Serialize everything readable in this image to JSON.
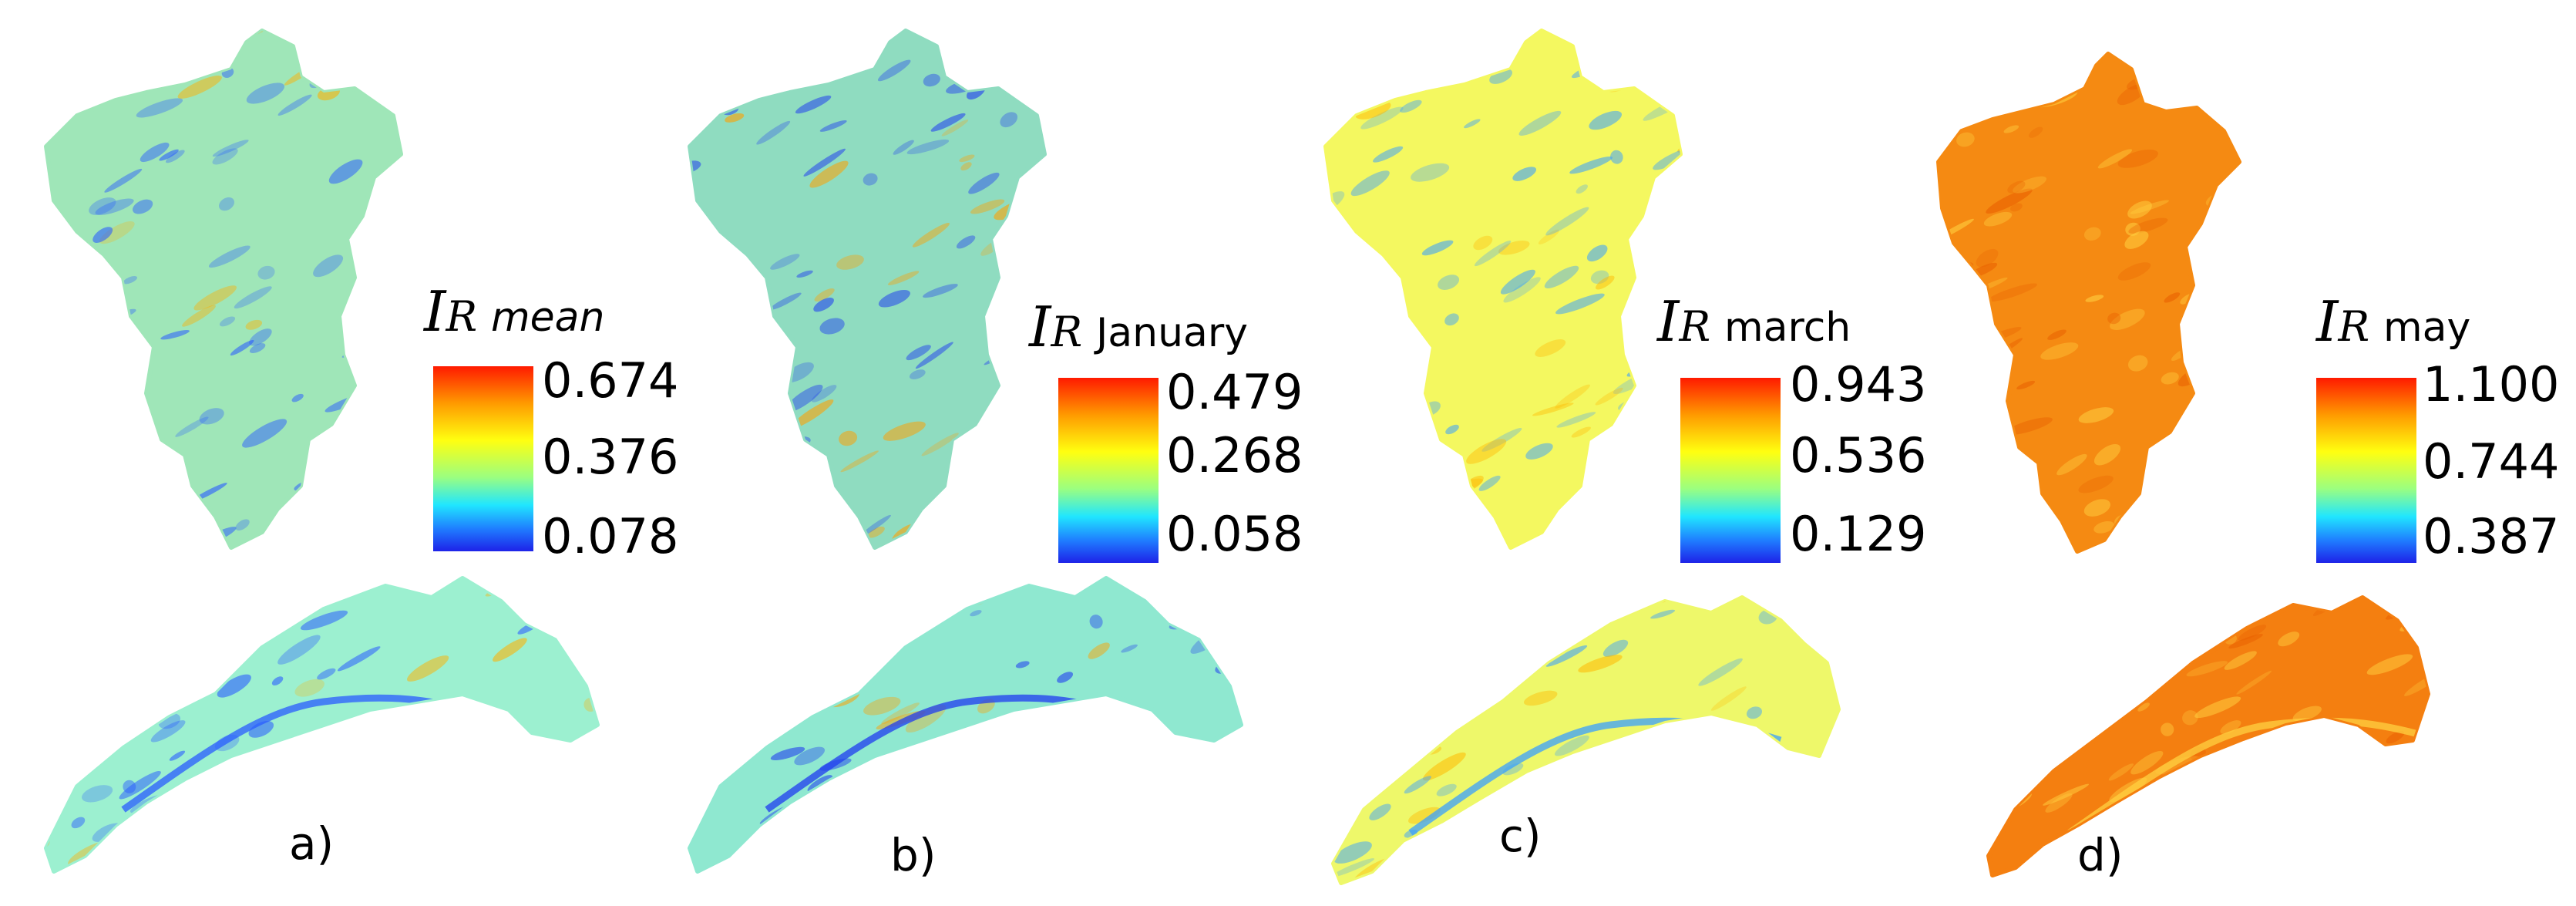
{
  "figure": {
    "panels": [
      {
        "id": "a",
        "label": "a)",
        "legend": {
          "symbol": "I",
          "subscript": "R",
          "month": "mean",
          "month_italic": true,
          "max": "0.674",
          "mid": "0.376",
          "min": "0.078"
        },
        "fill_top": "#9fe6b8",
        "fill_bottom": "#9cf0d0",
        "accent": "#2a5cff",
        "hot": "#ffb000"
      },
      {
        "id": "b",
        "label": "b)",
        "legend": {
          "symbol": "I",
          "subscript": "R",
          "month": "January",
          "month_italic": false,
          "max": "0.479",
          "mid": "0.268",
          "min": "0.058"
        },
        "fill_top": "#8fdcc0",
        "fill_bottom": "#8fe8d0",
        "accent": "#1f3cf0",
        "hot": "#ffa000"
      },
      {
        "id": "c",
        "label": "c)",
        "legend": {
          "symbol": "I",
          "subscript": "R",
          "month": "march",
          "month_italic": false,
          "max": "0.943",
          "mid": "0.536",
          "min": "0.129"
        },
        "fill_top": "#f4f860",
        "fill_bottom": "#eef86a",
        "accent": "#3aa0ff",
        "hot": "#ffb800"
      },
      {
        "id": "d",
        "label": "d)",
        "legend": {
          "symbol": "I",
          "subscript": "R",
          "month": "may",
          "month_italic": false,
          "max": "1.100",
          "mid": "0.744",
          "min": "0.387"
        },
        "fill_top": "#f58a12",
        "fill_bottom": "#f47f10",
        "accent": "#ffd040",
        "hot": "#e85e00"
      }
    ]
  }
}
